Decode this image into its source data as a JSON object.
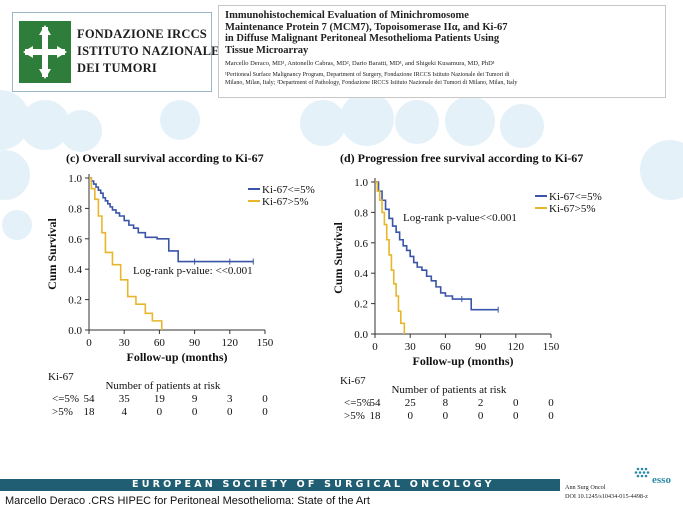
{
  "institute": {
    "line1": "FONDAZIONE IRCCS",
    "line2": "ISTITUTO NAZIONALE",
    "line3": "DEI TUMORI"
  },
  "paper": {
    "title_lines": [
      "Immunohistochemical Evaluation of Minichromosome",
      "Maintenance Protein 7 (MCM7), Topoisomerase IIα, and Ki-67",
      "in Diffuse Malignant Peritoneal Mesothelioma Patients Using",
      "Tissue Microarray"
    ],
    "authors": "Marcello Deraco, MD¹, Antonello Cabras, MD², Dario Baratti, MD¹, and Shigeki Kusamura, MD, PhD¹",
    "affil_line1": "¹Peritoneal Surface Malignancy Program, Department of Surgery, Fondazione IRCCS Istituto Nazionale dei Tumori di",
    "affil_line2": "Milano, Milan, Italy; ²Department of Pathology, Fondazione IRCCS Istituto Nazionale dei Tumori di Milano, Milan, Italy"
  },
  "chart_data": [
    {
      "type": "line",
      "title": "(c) Overall survival according to Ki-67",
      "xlabel": "Follow-up (months)",
      "ylabel": "Cum Survival",
      "xlim": [
        0,
        150
      ],
      "ylim": [
        0,
        1
      ],
      "xticks": [
        "0",
        "30",
        "60",
        "90",
        "120",
        "150"
      ],
      "yticks": [
        "0.0",
        "0.2",
        "0.4",
        "0.6",
        "0.8",
        "1.0"
      ],
      "legend_position": "top-right",
      "annotation": "Log-rank p-value: <<0.001",
      "series": [
        {
          "name": "Ki-67<=5%",
          "color": "#3a55a8",
          "x": [
            0,
            2,
            4,
            6,
            8,
            10,
            12,
            14,
            16,
            18,
            20,
            23,
            26,
            30,
            34,
            38,
            42,
            48,
            58,
            68,
            76,
            90,
            120,
            140
          ],
          "y": [
            1.0,
            0.98,
            0.96,
            0.94,
            0.92,
            0.9,
            0.87,
            0.85,
            0.83,
            0.81,
            0.79,
            0.77,
            0.75,
            0.72,
            0.69,
            0.67,
            0.64,
            0.61,
            0.6,
            0.52,
            0.45,
            0.45,
            0.45,
            0.45
          ]
        },
        {
          "name": "Ki-67>5%",
          "color": "#e8b62b",
          "x": [
            0,
            2,
            5,
            8,
            11,
            14,
            20,
            27,
            33,
            40,
            48,
            54,
            62
          ],
          "y": [
            1.0,
            0.93,
            0.86,
            0.75,
            0.64,
            0.51,
            0.43,
            0.33,
            0.22,
            0.17,
            0.11,
            0.06,
            0.0
          ]
        }
      ],
      "risk_table": {
        "group_header": "Ki-67",
        "caption": "Number of patients at risk",
        "rows": [
          {
            "label": "<=5%",
            "values": [
              "54",
              "35",
              "19",
              "9",
              "3",
              "0"
            ]
          },
          {
            "label": ">5%",
            "values": [
              "18",
              "4",
              "0",
              "0",
              "0",
              "0"
            ]
          }
        ]
      }
    },
    {
      "type": "line",
      "title": "(d) Progression free survival according to Ki-67",
      "xlabel": "Follow-up (months)",
      "ylabel": "Cum Survival",
      "xlim": [
        0,
        150
      ],
      "ylim": [
        0,
        1
      ],
      "xticks": [
        "0",
        "30",
        "60",
        "90",
        "120",
        "150"
      ],
      "yticks": [
        "0.0",
        "0.2",
        "0.4",
        "0.6",
        "0.8",
        "1.0"
      ],
      "legend_position": "top-right",
      "annotation": "Log-rank p-value<<0.001",
      "series": [
        {
          "name": "Ki-67<=5%",
          "color": "#3a55a8",
          "x": [
            0,
            3,
            6,
            9,
            12,
            15,
            18,
            21,
            24,
            27,
            30,
            33,
            36,
            40,
            44,
            48,
            52,
            56,
            60,
            66,
            74,
            82,
            105
          ],
          "y": [
            1.0,
            0.94,
            0.88,
            0.82,
            0.76,
            0.71,
            0.67,
            0.62,
            0.58,
            0.55,
            0.51,
            0.47,
            0.44,
            0.42,
            0.38,
            0.35,
            0.31,
            0.27,
            0.25,
            0.23,
            0.23,
            0.16,
            0.16
          ]
        },
        {
          "name": "Ki-67>5%",
          "color": "#e8b62b",
          "x": [
            0,
            2,
            4,
            6,
            8,
            10,
            12,
            14,
            16,
            18,
            20,
            22,
            25
          ],
          "y": [
            1.0,
            0.94,
            0.88,
            0.8,
            0.72,
            0.62,
            0.52,
            0.42,
            0.33,
            0.25,
            0.15,
            0.07,
            0.0
          ]
        }
      ],
      "risk_table": {
        "group_header": "Ki-67",
        "caption": "Number of patients at risk",
        "rows": [
          {
            "label": "<=5%",
            "values": [
              "54",
              "25",
              "8",
              "2",
              "0",
              "0"
            ]
          },
          {
            "label": ">5%",
            "values": [
              "18",
              "0",
              "0",
              "0",
              "0",
              "0"
            ]
          }
        ]
      }
    }
  ],
  "footer": {
    "society": "EUROPEAN SOCIETY OF SURGICAL ONCOLOGY",
    "caption": "Marcello Deraco .CRS HIPEC for Peritoneal Mesothelioma: State of the Art",
    "journal": "Ann Surg Oncol",
    "doi": "DOI 10.1245/s10434-015-4498-z",
    "logo_text": "esso"
  }
}
